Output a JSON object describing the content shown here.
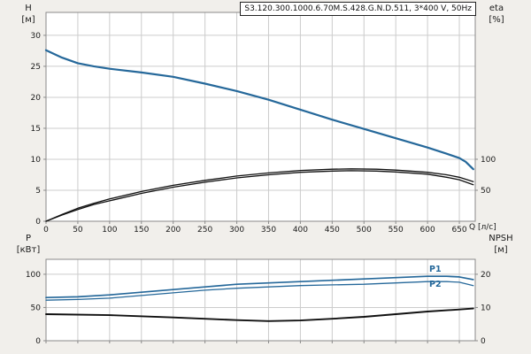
{
  "title_box": {
    "text": "S3.120.300.1000.6.70M.S.428.G.N.D.511, 3*400 V, 50Hz"
  },
  "axis_labels": {
    "h": "H",
    "h_unit": "[м]",
    "eta": "eta",
    "eta_unit": "[%]",
    "q": "Q [л/с]",
    "p": "P",
    "p_unit": "[кВт]",
    "npsh": "NPSH",
    "npsh_unit": "[м]"
  },
  "curve_labels": {
    "p1": "P1",
    "p2": "P2"
  },
  "colors": {
    "background": "#f1efeb",
    "plot_bg": "#ffffff",
    "grid": "#cccccc",
    "border": "#8a8a8a",
    "text": "#1a1a1a",
    "curve_blue": "#25689a",
    "curve_black": "#111111"
  },
  "chart_data": [
    {
      "id": "head-efficiency-chart",
      "type": "line",
      "x": {
        "label": "Q [л/с]",
        "min": 0,
        "max": 675,
        "ticks": [
          0,
          50,
          100,
          150,
          200,
          250,
          300,
          350,
          400,
          450,
          500,
          550,
          600,
          650
        ]
      },
      "y_left": {
        "label": "H [м]",
        "min": 0,
        "max": 33.7,
        "ticks": [
          0,
          5,
          10,
          15,
          20,
          25,
          30
        ]
      },
      "y_right": {
        "label": "eta [%]",
        "min": 0,
        "max": 337,
        "ticks": [
          50,
          100
        ]
      },
      "grid": true,
      "series": [
        {
          "name": "H",
          "axis": "left",
          "color": "#25689a",
          "width": 2.2,
          "points": [
            [
              0,
              27.6
            ],
            [
              25,
              26.4
            ],
            [
              50,
              25.5
            ],
            [
              75,
              25.0
            ],
            [
              100,
              24.6
            ],
            [
              150,
              24.0
            ],
            [
              200,
              23.3
            ],
            [
              250,
              22.2
            ],
            [
              300,
              21.0
            ],
            [
              350,
              19.6
            ],
            [
              400,
              18.0
            ],
            [
              450,
              16.4
            ],
            [
              500,
              14.9
            ],
            [
              550,
              13.4
            ],
            [
              600,
              11.9
            ],
            [
              630,
              10.9
            ],
            [
              650,
              10.2
            ],
            [
              660,
              9.6
            ],
            [
              672,
              8.4
            ]
          ]
        },
        {
          "name": "eta1",
          "axis": "right",
          "color": "#111111",
          "width": 1.3,
          "points": [
            [
              0,
              0
            ],
            [
              25,
              11
            ],
            [
              50,
              21
            ],
            [
              75,
              29
            ],
            [
              100,
              36
            ],
            [
              150,
              48
            ],
            [
              200,
              58
            ],
            [
              250,
              66
            ],
            [
              300,
              73
            ],
            [
              350,
              78
            ],
            [
              400,
              82
            ],
            [
              450,
              84
            ],
            [
              480,
              84.5
            ],
            [
              520,
              84
            ],
            [
              550,
              82.5
            ],
            [
              600,
              79
            ],
            [
              630,
              75
            ],
            [
              650,
              71
            ],
            [
              672,
              64
            ]
          ]
        },
        {
          "name": "eta2",
          "axis": "right",
          "color": "#111111",
          "width": 1.3,
          "points": [
            [
              0,
              0
            ],
            [
              25,
              10
            ],
            [
              50,
              19
            ],
            [
              75,
              27
            ],
            [
              100,
              33
            ],
            [
              150,
              45
            ],
            [
              200,
              55
            ],
            [
              250,
              63
            ],
            [
              300,
              70
            ],
            [
              350,
              75
            ],
            [
              400,
              79
            ],
            [
              450,
              81
            ],
            [
              480,
              81.5
            ],
            [
              520,
              81
            ],
            [
              550,
              79.5
            ],
            [
              600,
              76
            ],
            [
              630,
              71
            ],
            [
              650,
              67
            ],
            [
              672,
              59
            ]
          ]
        }
      ]
    },
    {
      "id": "power-npsh-chart",
      "type": "line",
      "x": {
        "label": "",
        "min": 0,
        "max": 675,
        "ticks": [
          0,
          50,
          100,
          150,
          200,
          250,
          300,
          350,
          400,
          450,
          500,
          550,
          600,
          650
        ]
      },
      "y_left": {
        "label": "P [кВт]",
        "min": 0,
        "max": 122.5,
        "ticks": [
          0,
          50,
          100
        ]
      },
      "y_right": {
        "label": "NPSH [м]",
        "min": 0,
        "max": 24.5,
        "ticks": [
          0,
          10,
          20
        ]
      },
      "grid": true,
      "series": [
        {
          "name": "P1",
          "axis": "left",
          "color": "#25689a",
          "width": 1.7,
          "points": [
            [
              0,
              65
            ],
            [
              50,
              66
            ],
            [
              100,
              69
            ],
            [
              150,
              73
            ],
            [
              200,
              77
            ],
            [
              250,
              81
            ],
            [
              300,
              85
            ],
            [
              350,
              87
            ],
            [
              400,
              89
            ],
            [
              450,
              91
            ],
            [
              500,
              93
            ],
            [
              550,
              95
            ],
            [
              600,
              97
            ],
            [
              630,
              97
            ],
            [
              650,
              96
            ],
            [
              672,
              92
            ]
          ]
        },
        {
          "name": "P2",
          "axis": "left",
          "color": "#25689a",
          "width": 1.3,
          "points": [
            [
              0,
              61
            ],
            [
              50,
              62
            ],
            [
              100,
              64
            ],
            [
              150,
              68
            ],
            [
              200,
              72
            ],
            [
              250,
              76
            ],
            [
              300,
              79
            ],
            [
              350,
              81
            ],
            [
              400,
              83
            ],
            [
              450,
              84
            ],
            [
              500,
              85
            ],
            [
              550,
              87
            ],
            [
              600,
              89
            ],
            [
              630,
              89
            ],
            [
              650,
              88
            ],
            [
              672,
              83
            ]
          ]
        },
        {
          "name": "NPSH",
          "axis": "right",
          "color": "#111111",
          "width": 1.9,
          "points": [
            [
              0,
              8.0
            ],
            [
              100,
              7.7
            ],
            [
              200,
              7.0
            ],
            [
              300,
              6.2
            ],
            [
              350,
              5.9
            ],
            [
              400,
              6.1
            ],
            [
              450,
              6.6
            ],
            [
              500,
              7.2
            ],
            [
              550,
              8.0
            ],
            [
              600,
              8.8
            ],
            [
              650,
              9.4
            ],
            [
              672,
              9.7
            ]
          ]
        }
      ]
    }
  ]
}
